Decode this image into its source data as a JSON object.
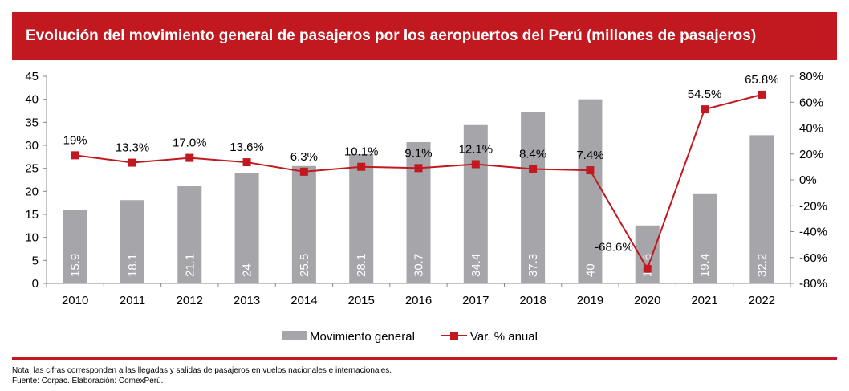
{
  "chart_data": {
    "type": "bar+line",
    "title": "Evolución del movimiento general de pasajeros por los aeropuertos del Perú (millones de pasajeros)",
    "categories": [
      "2010",
      "2011",
      "2012",
      "2013",
      "2014",
      "2015",
      "2016",
      "2017",
      "2018",
      "2019",
      "2020",
      "2021",
      "2022"
    ],
    "series": [
      {
        "name": "Movimiento general",
        "type": "bar",
        "axis": "left",
        "color": "#a6a5aa",
        "values": [
          15.9,
          18.1,
          21.1,
          24,
          25.5,
          28.1,
          30.7,
          34.4,
          37.3,
          40,
          12.6,
          19.4,
          32.2
        ],
        "labels": [
          "15.9",
          "18.1",
          "21.1",
          "24",
          "25.5",
          "28.1",
          "30.7",
          "34.4",
          "37.3",
          "40",
          "12.6",
          "19.4",
          "32.2"
        ]
      },
      {
        "name": "Var. % anual",
        "type": "line",
        "axis": "right",
        "color": "#c1191f",
        "values": [
          19,
          13.3,
          17.0,
          13.6,
          6.3,
          10.1,
          9.1,
          12.1,
          8.4,
          7.4,
          -68.6,
          54.5,
          65.8
        ],
        "labels": [
          "19%",
          "13.3%",
          "17.0%",
          "13.6%",
          "6.3%",
          "10.1%",
          "9.1%",
          "12.1%",
          "8.4%",
          "7.4%",
          "-68.6%",
          "54.5%",
          "65.8%"
        ]
      }
    ],
    "left_axis": {
      "ylim": [
        0,
        45
      ],
      "ticks": [
        "0",
        "5",
        "10",
        "15",
        "20",
        "25",
        "30",
        "35",
        "40",
        "45"
      ]
    },
    "right_axis": {
      "ylim": [
        -80,
        80
      ],
      "ticks": [
        "-80%",
        "-60%",
        "-40%",
        "-20%",
        "0%",
        "20%",
        "40%",
        "60%",
        "80%"
      ]
    },
    "legend": "bottom-center",
    "grid": false
  },
  "notes": {
    "nota": "Nota: las cifras corresponden a las llegadas y salidas de pasajeros en vuelos nacionales e internacionales.",
    "fuente": "Fuente: Corpac. Elaboración: ComexPerú."
  }
}
